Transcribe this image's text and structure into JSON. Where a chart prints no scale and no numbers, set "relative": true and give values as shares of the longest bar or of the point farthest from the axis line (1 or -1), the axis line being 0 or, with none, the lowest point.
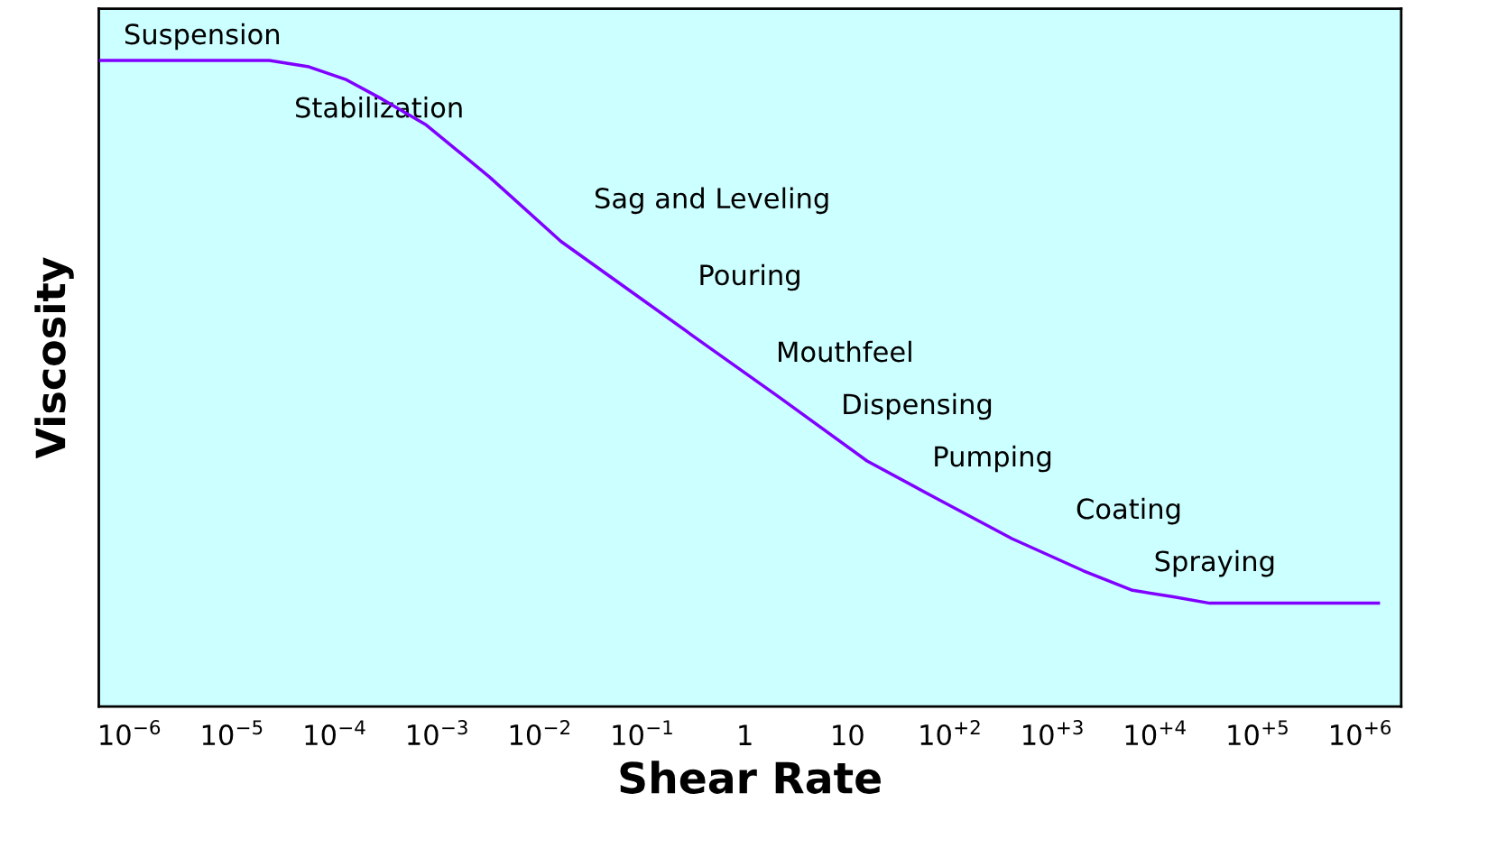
{
  "chart_data": {
    "type": "line",
    "xlabel": "Shear Rate",
    "ylabel": "Viscosity",
    "relative": true,
    "log": "x",
    "grid": false,
    "legend": false,
    "marker": "none",
    "line_style": "solid",
    "xlim": [
      5e-07,
      2500000.0
    ],
    "xticks": [
      {
        "value": 1e-06,
        "label": "10$^{−6}$"
      },
      {
        "value": 1e-05,
        "label": "10$^{−5}$"
      },
      {
        "value": 0.0001,
        "label": "10$^{−4}$"
      },
      {
        "value": 0.001,
        "label": "10$^{−3}$"
      },
      {
        "value": 0.01,
        "label": "10$^{−2}$"
      },
      {
        "value": 0.1,
        "label": "10$^{−1}$"
      },
      {
        "value": 1,
        "label": "1"
      },
      {
        "value": 10,
        "label": "10"
      },
      {
        "value": 100,
        "label": "10$^{+2}$"
      },
      {
        "value": 1000,
        "label": "10$^{+3}$"
      },
      {
        "value": 10000,
        "label": "10$^{+4}$"
      },
      {
        "value": 100000,
        "label": "10$^{+5}$"
      },
      {
        "value": 1000000,
        "label": "10$^{+6}$"
      }
    ],
    "x": [
      5.2e-07,
      2.3e-05,
      5.6e-05,
      0.00013,
      0.00029,
      0.00078,
      0.0032,
      0.016,
      0.081,
      0.41,
      2.1,
      15.5,
      78,
      400,
      2000,
      6000,
      15000,
      34000,
      1500000.0
    ],
    "series": [
      {
        "color": "#8000ff",
        "values": [
          1.0,
          1.0,
          0.99,
          0.97,
          0.94,
          0.9,
          0.82,
          0.72,
          0.64,
          0.56,
          0.48,
          0.38,
          0.32,
          0.26,
          0.21,
          0.18,
          0.17,
          0.16,
          0.16
        ]
      }
    ],
    "annotations": [
      "Suspension",
      "Stabilization",
      "Sag and Leveling",
      "Pouring",
      "Mouthfeel",
      "Dispensing",
      "Pumping",
      "Coating",
      "Spraying"
    ]
  }
}
